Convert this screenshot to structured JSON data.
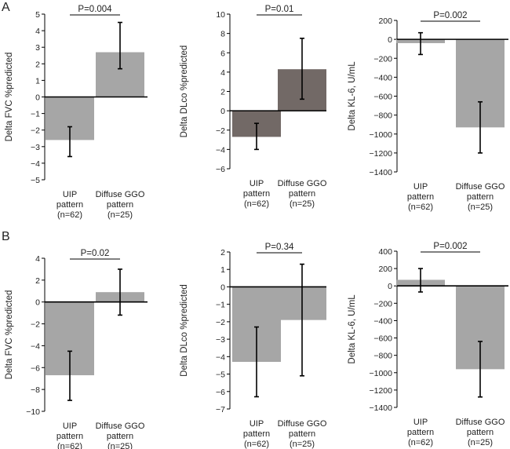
{
  "panels": {
    "A": {
      "letter": "A"
    },
    "B": {
      "letter": "B"
    }
  },
  "colors": {
    "bar_light": "#a6a6a6",
    "bar_dark": "#726966",
    "axis": "#000000",
    "error": "#000000",
    "text": "#222222"
  },
  "chart_data": [
    {
      "panel": "A",
      "type": "bar",
      "ylabel": "Delta FVC %predicted",
      "ylim": [
        -5,
        5
      ],
      "ticks": [
        5,
        4,
        3,
        2,
        1,
        0,
        -1,
        -2,
        -3,
        -4,
        -5
      ],
      "categories": [
        [
          "UIP",
          "pattern",
          "(n=62)"
        ],
        [
          "Diffuse GGO",
          "pattern",
          "(n=25)"
        ]
      ],
      "values": [
        -2.6,
        2.7
      ],
      "errors": [
        [
          -3.6,
          -1.8
        ],
        [
          1.7,
          4.5
        ]
      ],
      "bar_colors": [
        "bar_light",
        "bar_light"
      ],
      "pvalue": "P=0.004"
    },
    {
      "panel": "A",
      "type": "bar",
      "ylabel": "Delta DLco %predicted",
      "ylim": [
        -6,
        10
      ],
      "ticks": [
        10,
        8,
        6,
        4,
        2,
        0,
        -2,
        -4,
        -6
      ],
      "categories": [
        [
          "UIP",
          "pattern",
          "(n=62)"
        ],
        [
          "Diffuse GGO",
          "pattern",
          "(n=25)"
        ]
      ],
      "values": [
        -2.7,
        4.3
      ],
      "errors": [
        [
          -4.0,
          -1.3
        ],
        [
          1.2,
          7.5
        ]
      ],
      "bar_colors": [
        "bar_dark",
        "bar_dark"
      ],
      "pvalue": "P=0.01"
    },
    {
      "panel": "A",
      "type": "bar",
      "ylabel": "Delta KL-6, U/mL",
      "ylim": [
        -1400,
        200
      ],
      "ticks": [
        200,
        0,
        -200,
        -400,
        -600,
        -800,
        -1000,
        -1200,
        -1400
      ],
      "categories": [
        [
          "UIP",
          "pattern",
          "(n=62)"
        ],
        [
          "Diffuse GGO",
          "pattern",
          "(n=25)"
        ]
      ],
      "values": [
        -40,
        -930
      ],
      "errors": [
        [
          -160,
          70
        ],
        [
          -1200,
          -660
        ]
      ],
      "bar_colors": [
        "bar_light",
        "bar_light"
      ],
      "pvalue": "P=0.002"
    },
    {
      "panel": "B",
      "type": "bar",
      "ylabel": "Delta FVC %predicted",
      "ylim": [
        -10,
        4
      ],
      "ticks": [
        4,
        2,
        0,
        -2,
        -4,
        -6,
        -8,
        -10
      ],
      "categories": [
        [
          "UIP",
          "pattern",
          "(n=62)"
        ],
        [
          "Diffuse GGO",
          "pattern",
          "(n=25)"
        ]
      ],
      "values": [
        -6.7,
        0.9
      ],
      "errors": [
        [
          -9.0,
          -4.5
        ],
        [
          -1.2,
          3.0
        ]
      ],
      "bar_colors": [
        "bar_light",
        "bar_light"
      ],
      "pvalue": "P=0.02"
    },
    {
      "panel": "B",
      "type": "bar",
      "ylabel": "Delta DLco %predicted",
      "ylim": [
        -7,
        2
      ],
      "ticks": [
        2,
        1,
        0,
        -1,
        -2,
        -3,
        -4,
        -5,
        -6,
        -7
      ],
      "categories": [
        [
          "UIP",
          "pattern",
          "(n=62)"
        ],
        [
          "Diffuse GGO",
          "pattern",
          "(n=25)"
        ]
      ],
      "values": [
        -4.3,
        -1.9
      ],
      "errors": [
        [
          -6.3,
          -2.3
        ],
        [
          -5.1,
          1.3
        ]
      ],
      "bar_colors": [
        "bar_light",
        "bar_light"
      ],
      "pvalue": "P=0.34"
    },
    {
      "panel": "B",
      "type": "bar",
      "ylabel": "Delta KL-6, U/mL",
      "ylim": [
        -1400,
        400
      ],
      "ticks": [
        400,
        200,
        0,
        -200,
        -400,
        -600,
        -800,
        -1000,
        -1200,
        -1400
      ],
      "categories": [
        [
          "UIP",
          "pattern",
          "(n=62)"
        ],
        [
          "Diffuse GGO",
          "pattern",
          "(n=25)"
        ]
      ],
      "values": [
        70,
        -960
      ],
      "errors": [
        [
          -70,
          200
        ],
        [
          -1280,
          -640
        ]
      ],
      "bar_colors": [
        "bar_light",
        "bar_light"
      ],
      "pvalue": "P=0.002"
    }
  ]
}
